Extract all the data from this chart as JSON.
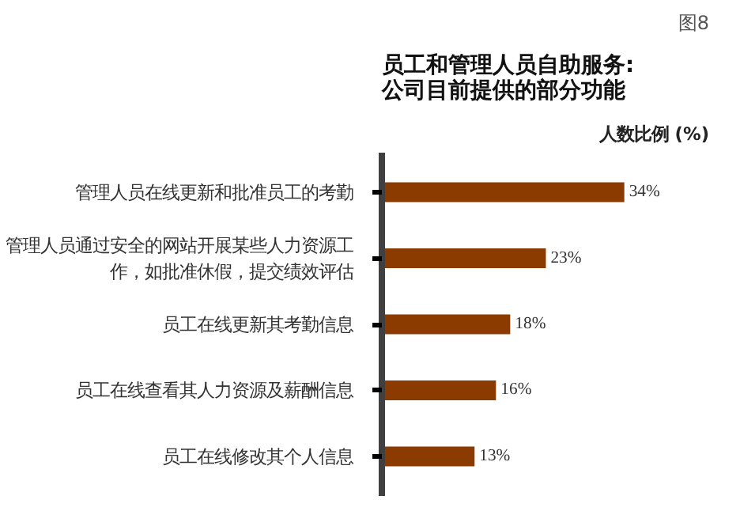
{
  "chart_data": {
    "type": "bar",
    "orientation": "horizontal",
    "title": "员工和管理人员自助服务:\n公司目前提供的部分功能",
    "xlabel": "人数比例 (%)",
    "annotations": [
      "图8"
    ],
    "categories": [
      "管理人员在线更新和批准员工的考勤",
      "管理人员通过安全的网站开展某些人力资源工作，如批准休假，提交绩效评估",
      "员工在线更新其考勤信息",
      "员工在线查看其人力资源及薪酬信息",
      "员工在线修改其个人信息"
    ],
    "values": [
      34,
      23,
      18,
      16,
      13
    ],
    "value_labels": [
      "34%",
      "23%",
      "18%",
      "16%",
      "13%"
    ],
    "color": "#8b3a00",
    "tick_labels": "y",
    "grid": false
  }
}
